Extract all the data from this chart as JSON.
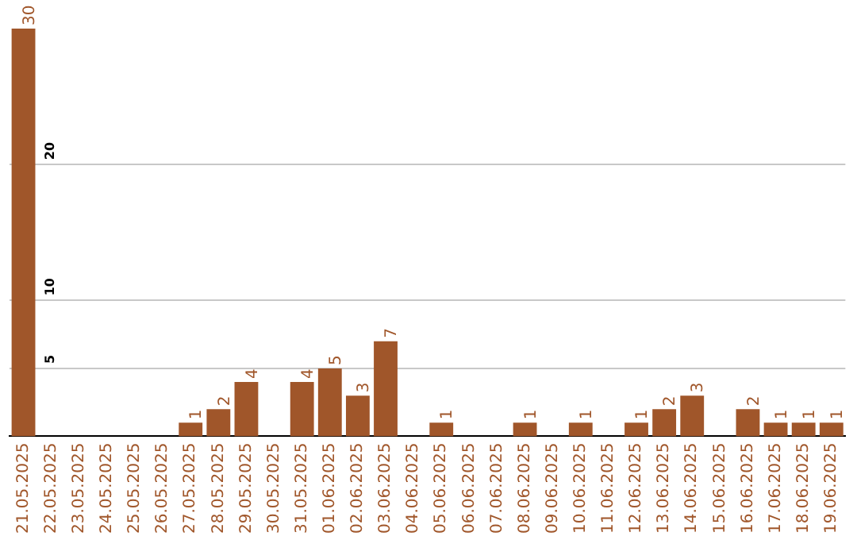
{
  "chart_data": {
    "type": "bar",
    "categories": [
      "21.05.2025",
      "22.05.2025",
      "23.05.2025",
      "24.05.2025",
      "25.05.2025",
      "26.05.2025",
      "27.05.2025",
      "28.05.2025",
      "29.05.2025",
      "30.05.2025",
      "31.05.2025",
      "01.06.2025",
      "02.06.2025",
      "03.06.2025",
      "04.06.2025",
      "05.06.2025",
      "06.06.2025",
      "07.06.2025",
      "08.06.2025",
      "09.06.2025",
      "10.06.2025",
      "11.06.2025",
      "12.06.2025",
      "13.06.2025",
      "14.06.2025",
      "15.06.2025",
      "16.06.2025",
      "17.06.2025",
      "18.06.2025",
      "19.06.2025"
    ],
    "values": [
      30,
      0,
      0,
      0,
      0,
      0,
      1,
      2,
      4,
      0,
      4,
      5,
      3,
      7,
      0,
      1,
      0,
      0,
      1,
      0,
      1,
      0,
      1,
      2,
      3,
      0,
      2,
      1,
      1,
      1
    ],
    "value_labels": [
      "30",
      null,
      null,
      null,
      null,
      null,
      "1",
      "2",
      "4",
      null,
      "4",
      "5",
      "3",
      "7",
      null,
      "1",
      null,
      null,
      "1",
      null,
      "1",
      null,
      "1",
      "2",
      "3",
      null,
      "2",
      "1",
      "1",
      "1"
    ],
    "color": "#a0562a",
    "ylim": [
      0,
      30
    ],
    "yticks": [
      5,
      10,
      20
    ],
    "grid": "y",
    "legend": false
  }
}
